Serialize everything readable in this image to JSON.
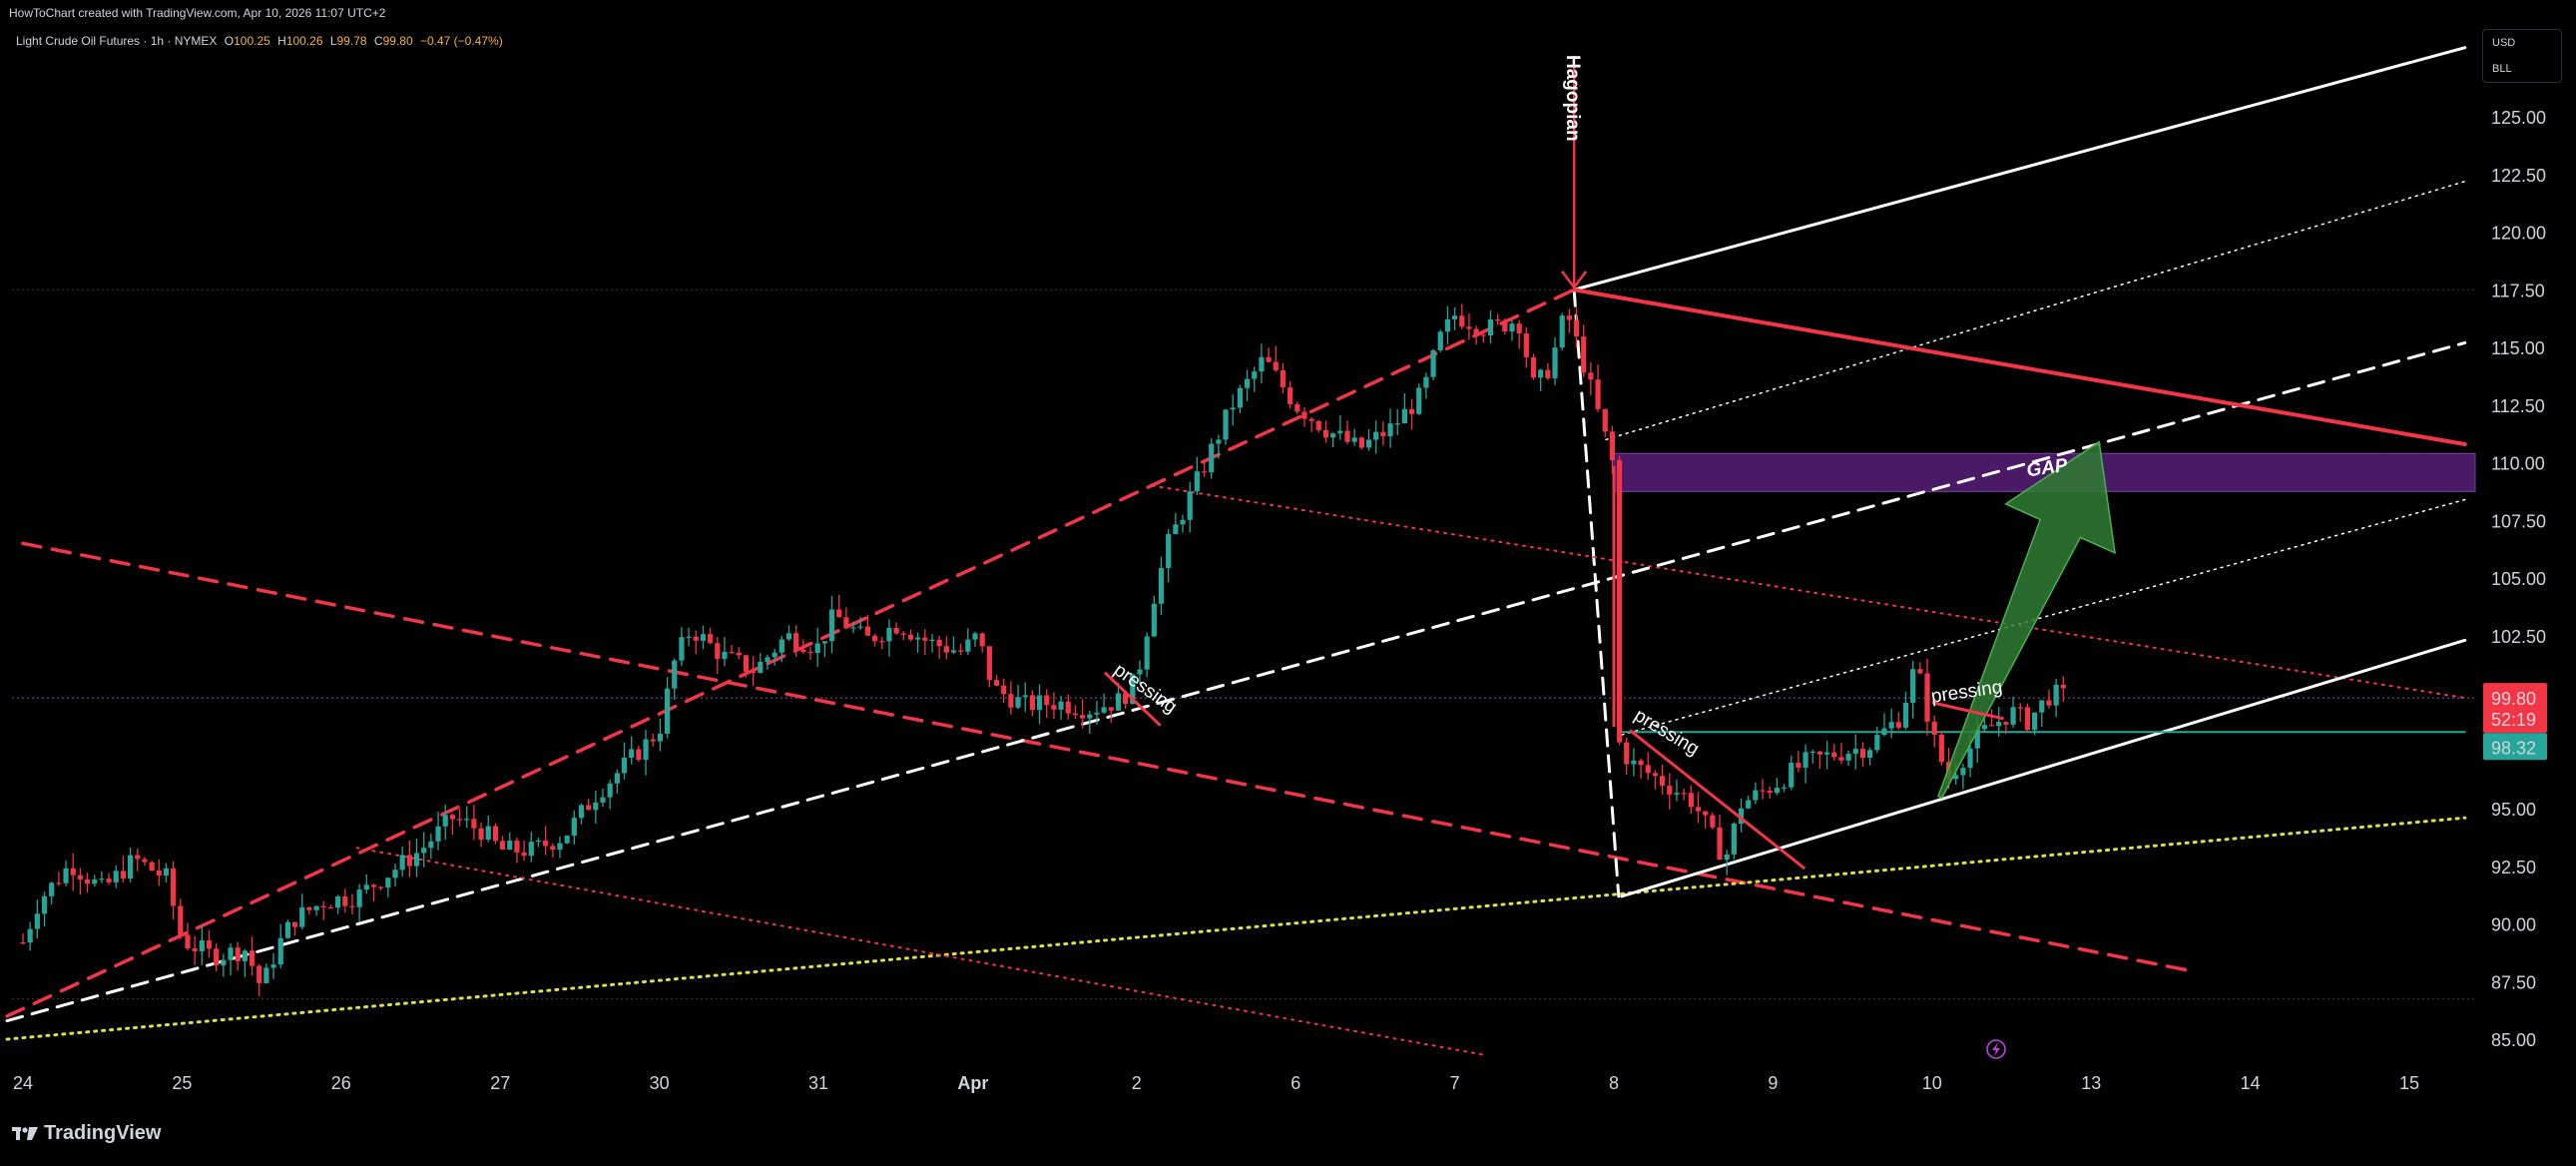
{
  "header": {
    "credit": "HowToChart created with TradingView.com, Apr 10, 2026 11:07 UTC+2",
    "symbol": "Light Crude Oil Futures · 1h · NYMEX",
    "ohlc": {
      "o_label": "O",
      "o": "100.25",
      "h_label": "H",
      "h": "100.26",
      "l_label": "L",
      "l": "99.78",
      "c_label": "C",
      "c": "99.80",
      "change": "−0.47 (−0.47%)"
    }
  },
  "currency_box": {
    "line1": "USD",
    "line2": "BLL"
  },
  "footer": {
    "brand": "TradingView"
  },
  "price_labels": {
    "last_price": "99.80",
    "countdown": "52:19",
    "level": "98.32"
  },
  "colors": {
    "background": "#000000",
    "up_candle": "#26a69a",
    "down_candle": "#f23645",
    "red_line": "#f23645",
    "white_line": "#ffffff",
    "yellow_dotted": "#e0e04a",
    "gap_zone": "#4a1a66",
    "green_arrow": "#2e7d32",
    "teal_level": "#26a69a"
  },
  "chart_data": {
    "type": "candlestick",
    "title": "Light Crude Oil Futures · 1h · NYMEX",
    "y_axis": {
      "ticks": [
        "125.00",
        "122.50",
        "120.00",
        "117.50",
        "115.00",
        "112.50",
        "110.00",
        "107.50",
        "105.00",
        "102.50",
        "95.00",
        "92.50",
        "90.00",
        "87.50",
        "85.00"
      ],
      "ylim": [
        84.5,
        128.0
      ]
    },
    "x_axis": {
      "ticks": [
        {
          "label": "24",
          "bold": false
        },
        {
          "label": "25",
          "bold": false
        },
        {
          "label": "26",
          "bold": false
        },
        {
          "label": "27",
          "bold": false
        },
        {
          "label": "30",
          "bold": false
        },
        {
          "label": "31",
          "bold": false
        },
        {
          "label": "Apr",
          "bold": true
        },
        {
          "label": "2",
          "bold": false
        },
        {
          "label": "6",
          "bold": false
        },
        {
          "label": "7",
          "bold": false
        },
        {
          "label": "8",
          "bold": false
        },
        {
          "label": "9",
          "bold": false
        },
        {
          "label": "10",
          "bold": false
        },
        {
          "label": "13",
          "bold": false
        },
        {
          "label": "14",
          "bold": false
        },
        {
          "label": "15",
          "bold": false
        }
      ]
    },
    "price_path": [
      [
        0.0,
        89.2
      ],
      [
        0.1,
        91.0
      ],
      [
        0.3,
        92.6
      ],
      [
        0.5,
        91.5
      ],
      [
        0.7,
        92.8
      ],
      [
        0.9,
        92.0
      ],
      [
        1.0,
        89.3
      ],
      [
        1.2,
        88.6
      ],
      [
        1.4,
        88.9
      ],
      [
        1.5,
        87.2
      ],
      [
        1.6,
        89.0
      ],
      [
        1.7,
        90.2
      ],
      [
        1.9,
        91.0
      ],
      [
        2.1,
        91.2
      ],
      [
        2.3,
        92.2
      ],
      [
        2.5,
        93.2
      ],
      [
        2.7,
        94.6
      ],
      [
        2.9,
        94.0
      ],
      [
        3.0,
        93.2
      ],
      [
        3.2,
        93.2
      ],
      [
        3.4,
        93.8
      ],
      [
        3.6,
        95.6
      ],
      [
        3.8,
        97.0
      ],
      [
        4.0,
        98.4
      ],
      [
        4.1,
        101.5
      ],
      [
        4.2,
        102.8
      ],
      [
        4.4,
        101.6
      ],
      [
        4.6,
        101.0
      ],
      [
        4.8,
        102.5
      ],
      [
        5.0,
        102.0
      ],
      [
        5.1,
        103.4
      ],
      [
        5.3,
        102.3
      ],
      [
        5.5,
        103.0
      ],
      [
        5.7,
        102.2
      ],
      [
        5.9,
        101.8
      ],
      [
        6.0,
        102.5
      ],
      [
        6.1,
        100.2
      ],
      [
        6.3,
        99.5
      ],
      [
        6.5,
        99.6
      ],
      [
        6.7,
        99.3
      ],
      [
        6.9,
        99.7
      ],
      [
        7.0,
        100.6
      ],
      [
        7.1,
        104.0
      ],
      [
        7.2,
        106.5
      ],
      [
        7.4,
        109.5
      ],
      [
        7.6,
        112.5
      ],
      [
        7.8,
        114.5
      ],
      [
        8.0,
        112.5
      ],
      [
        8.2,
        111.4
      ],
      [
        8.4,
        110.6
      ],
      [
        8.6,
        111.5
      ],
      [
        8.8,
        113.0
      ],
      [
        8.9,
        115.3
      ],
      [
        9.0,
        116.4
      ],
      [
        9.2,
        115.8
      ],
      [
        9.4,
        116.2
      ],
      [
        9.5,
        113.2
      ],
      [
        9.6,
        114.2
      ],
      [
        9.7,
        116.6
      ],
      [
        9.8,
        114.5
      ],
      [
        9.95,
        111.0
      ],
      [
        10.0,
        109.8
      ],
      [
        10.02,
        98.0
      ],
      [
        10.1,
        97.0
      ],
      [
        10.3,
        96.2
      ],
      [
        10.5,
        95.3
      ],
      [
        10.6,
        94.0
      ],
      [
        10.7,
        92.8
      ],
      [
        10.8,
        95.2
      ],
      [
        11.0,
        96.0
      ],
      [
        11.2,
        97.0
      ],
      [
        11.4,
        97.4
      ],
      [
        11.6,
        97.7
      ],
      [
        11.8,
        99.0
      ],
      [
        11.9,
        101.3
      ],
      [
        12.0,
        98.2
      ],
      [
        12.1,
        96.3
      ],
      [
        12.3,
        98.2
      ],
      [
        12.5,
        99.2
      ],
      [
        12.6,
        98.8
      ],
      [
        12.75,
        100.0
      ],
      [
        12.85,
        99.8
      ]
    ]
  },
  "annotations": {
    "gap_label": "GAP",
    "pressing_1": "pressing",
    "pressing_2": "pressing",
    "pressing_3": "pressing",
    "vertical_label": "Hagopian"
  }
}
